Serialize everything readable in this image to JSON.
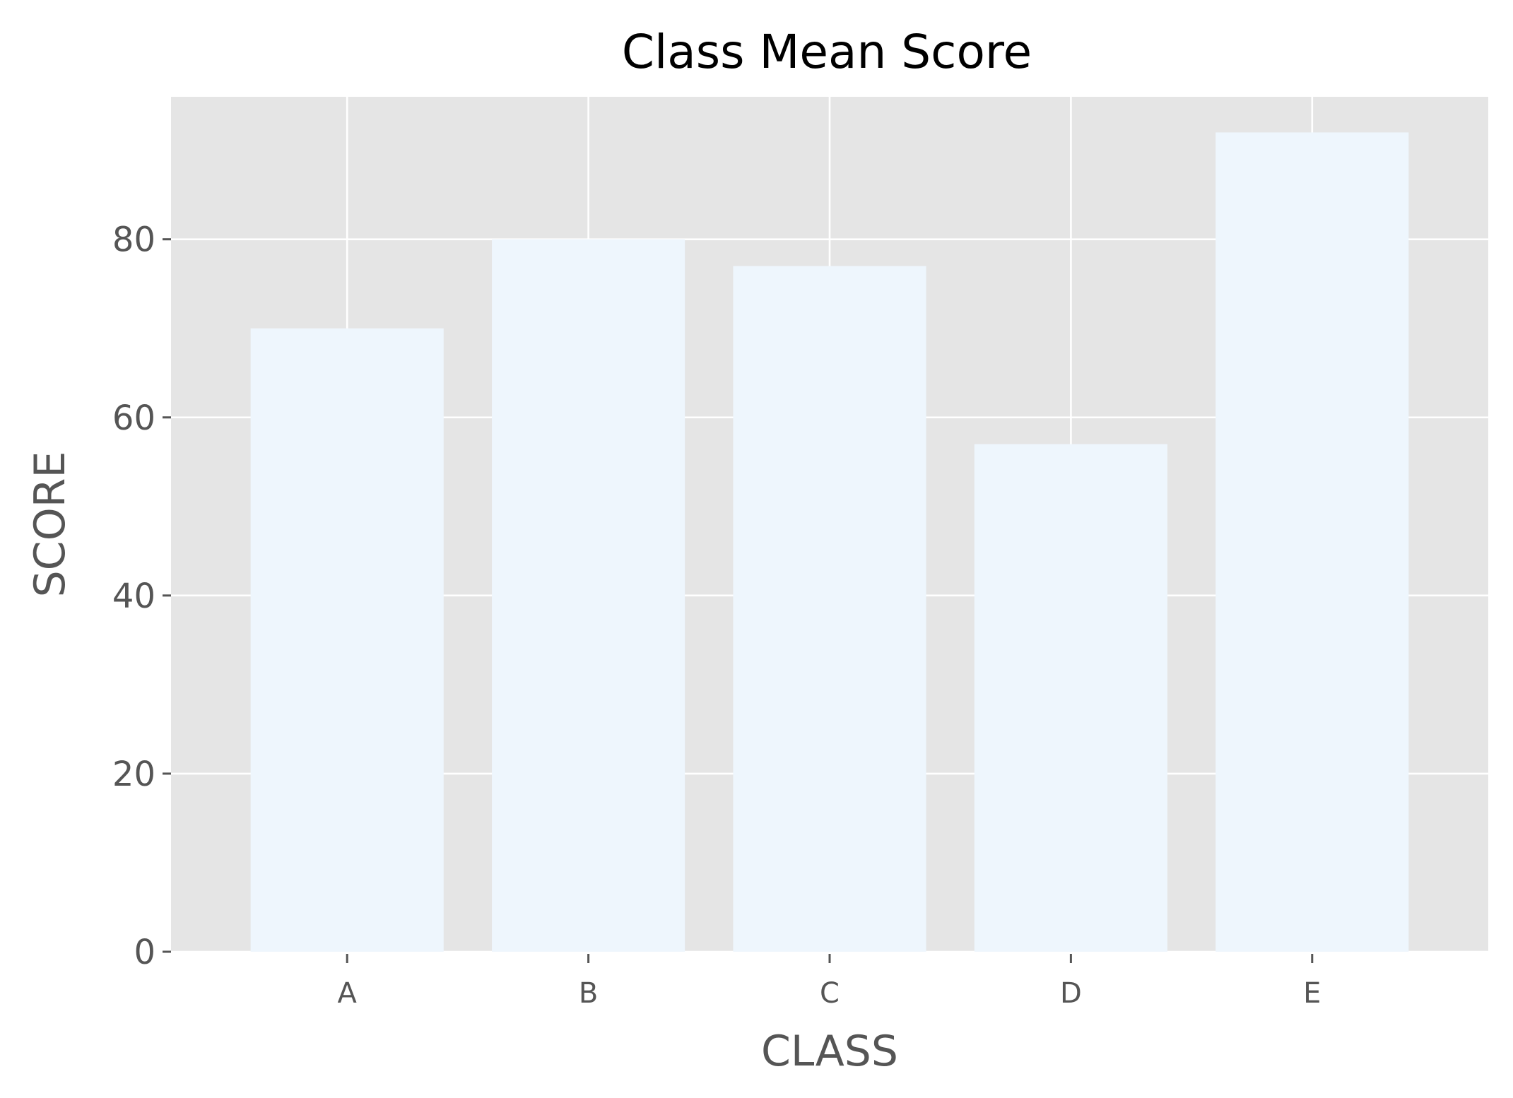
{
  "chart_data": {
    "type": "bar",
    "title": "Class Mean Score",
    "xlabel": "CLASS",
    "ylabel": "SCORE",
    "categories": [
      "A",
      "B",
      "C",
      "D",
      "E"
    ],
    "values": [
      70,
      80,
      77,
      57,
      92
    ],
    "ylim": [
      0,
      96
    ],
    "yticks": [
      0,
      20,
      40,
      60,
      80
    ],
    "ytick_labels": [
      "0",
      "20",
      "40",
      "60",
      "80"
    ],
    "grid": true,
    "legend": "none",
    "colors": {
      "bar": "#eef6fd",
      "plot_background": "#e5e5e5",
      "grid": "#ffffff",
      "tick_text": "#555555",
      "title_text": "#000000"
    }
  }
}
